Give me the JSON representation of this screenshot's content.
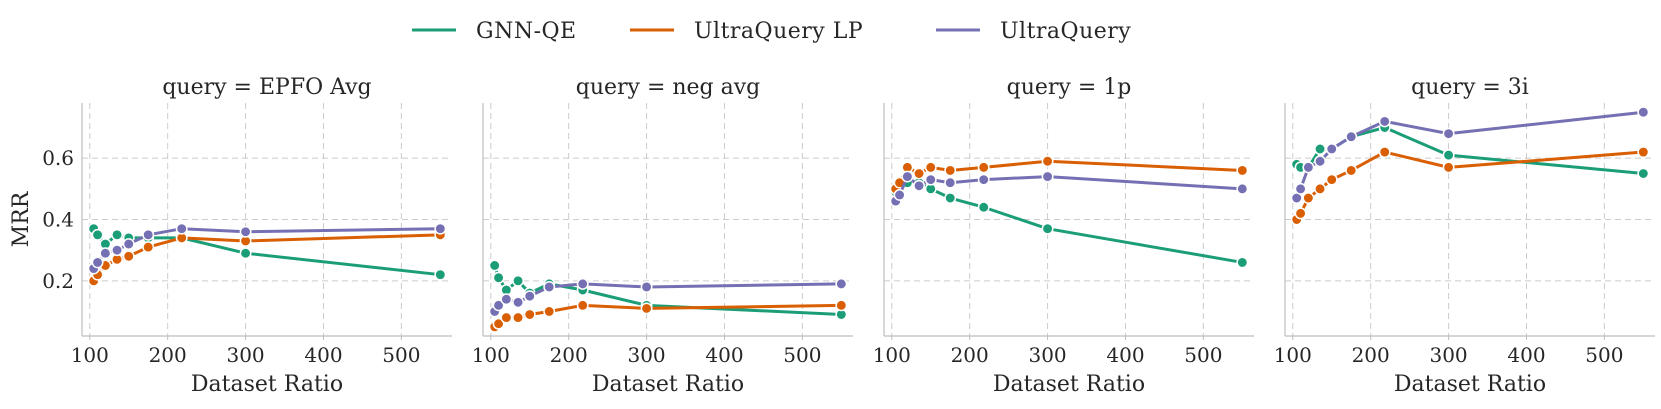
{
  "chart_data": {
    "type": "line",
    "ylabel": "MRR",
    "xlabel": "Dataset Ratio",
    "xlim": [
      90,
      565
    ],
    "ylim": [
      0.02,
      0.78
    ],
    "xticks": [
      100,
      200,
      300,
      400,
      500
    ],
    "yticks": [
      0.2,
      0.4,
      0.6
    ],
    "ytick_labels": [
      "0.2",
      "0.4",
      "0.6"
    ],
    "grid": true,
    "legend_position": "top-center",
    "legend": [
      {
        "name": "GNN-QE",
        "color": "#1b9e77"
      },
      {
        "name": "UltraQuery LP",
        "color": "#d95f02"
      },
      {
        "name": "UltraQuery",
        "color": "#7570b3"
      }
    ],
    "x": [
      105,
      110,
      120,
      135,
      150,
      175,
      218,
      300,
      550
    ],
    "panels": [
      {
        "title": "query = EPFO Avg",
        "series": [
          {
            "name": "GNN-QE",
            "values": [
              0.37,
              0.35,
              0.32,
              0.35,
              0.34,
              0.34,
              0.34,
              0.29,
              0.22
            ]
          },
          {
            "name": "UltraQuery LP",
            "values": [
              0.2,
              0.22,
              0.25,
              0.27,
              0.28,
              0.31,
              0.34,
              0.33,
              0.35
            ]
          },
          {
            "name": "UltraQuery",
            "values": [
              0.24,
              0.26,
              0.29,
              0.3,
              0.32,
              0.35,
              0.37,
              0.36,
              0.37
            ]
          }
        ]
      },
      {
        "title": "query = neg avg",
        "series": [
          {
            "name": "GNN-QE",
            "values": [
              0.25,
              0.21,
              0.17,
              0.2,
              0.16,
              0.19,
              0.17,
              0.12,
              0.09
            ]
          },
          {
            "name": "UltraQuery LP",
            "values": [
              0.05,
              0.06,
              0.08,
              0.08,
              0.09,
              0.1,
              0.12,
              0.11,
              0.12
            ]
          },
          {
            "name": "UltraQuery",
            "values": [
              0.1,
              0.12,
              0.14,
              0.13,
              0.15,
              0.18,
              0.19,
              0.18,
              0.19
            ]
          }
        ]
      },
      {
        "title": "query = 1p",
        "series": [
          {
            "name": "GNN-QE",
            "values": [
              0.49,
              0.51,
              0.52,
              0.52,
              0.5,
              0.47,
              0.44,
              0.37,
              0.26
            ]
          },
          {
            "name": "UltraQuery LP",
            "values": [
              0.5,
              0.52,
              0.57,
              0.55,
              0.57,
              0.56,
              0.57,
              0.59,
              0.56
            ]
          },
          {
            "name": "UltraQuery",
            "values": [
              0.46,
              0.48,
              0.54,
              0.51,
              0.53,
              0.52,
              0.53,
              0.54,
              0.5
            ]
          }
        ]
      },
      {
        "title": "query = 3i",
        "series": [
          {
            "name": "GNN-QE",
            "values": [
              0.58,
              0.57,
              0.57,
              0.63,
              0.63,
              0.67,
              0.7,
              0.61,
              0.55
            ]
          },
          {
            "name": "UltraQuery LP",
            "values": [
              0.4,
              0.42,
              0.47,
              0.5,
              0.53,
              0.56,
              0.62,
              0.57,
              0.62
            ]
          },
          {
            "name": "UltraQuery",
            "values": [
              0.47,
              0.5,
              0.57,
              0.59,
              0.63,
              0.67,
              0.72,
              0.68,
              0.75
            ]
          }
        ]
      }
    ]
  }
}
